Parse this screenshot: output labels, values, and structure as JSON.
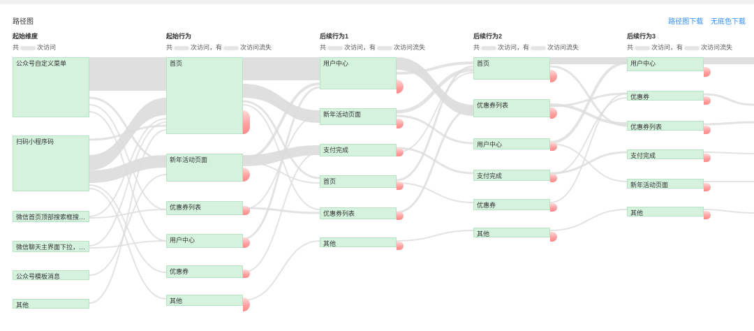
{
  "header": {
    "title": "路径图",
    "download_path": "路径图下载",
    "download_plain": "无底色下载"
  },
  "columns": [
    {
      "heading": "起始维度",
      "sub_a": "共",
      "sub_b": "次访问",
      "sub_c": "",
      "sub_d": ""
    },
    {
      "heading": "起始行为",
      "sub_a": "共",
      "sub_b": "次访问，有",
      "sub_c": "次访问流失",
      "sub_d": ""
    },
    {
      "heading": "后续行为1",
      "sub_a": "共",
      "sub_b": "次访问，有",
      "sub_c": "次访问流失",
      "sub_d": ""
    },
    {
      "heading": "后续行为2",
      "sub_a": "共",
      "sub_b": "次访问，有",
      "sub_c": "次访问流失",
      "sub_d": ""
    },
    {
      "heading": "后续行为3",
      "sub_a": "共",
      "sub_b": "次访问，有",
      "sub_c": "次访问流失",
      "sub_d": ""
    }
  ],
  "nodes": {
    "c0": [
      "公众号自定义菜单",
      "扫码小程序码",
      "微信首页顶部搜索框搜索结...",
      "微信聊天主界面下拉，「最近...",
      "公众号模板消息",
      "其他"
    ],
    "c1": [
      "首页",
      "新年活动页面",
      "优惠券列表",
      "用户中心",
      "优惠券",
      "其他"
    ],
    "c2": [
      "用户中心",
      "新年活动页面",
      "支付完成",
      "首页",
      "优惠券列表",
      "其他"
    ],
    "c3": [
      "首页",
      "优惠券列表",
      "用户中心",
      "支付完成",
      "优惠券",
      "其他"
    ],
    "c4": [
      "用户中心",
      "优惠券",
      "优惠券列表",
      "支付完成",
      "新年活动页面",
      "其他"
    ]
  },
  "colors": {
    "node_fill": "#d4f2dd",
    "node_border": "#b7e2c4",
    "flow": "#dcdcdc",
    "loss": "#ff9e9e",
    "link": "#2f8fff"
  }
}
